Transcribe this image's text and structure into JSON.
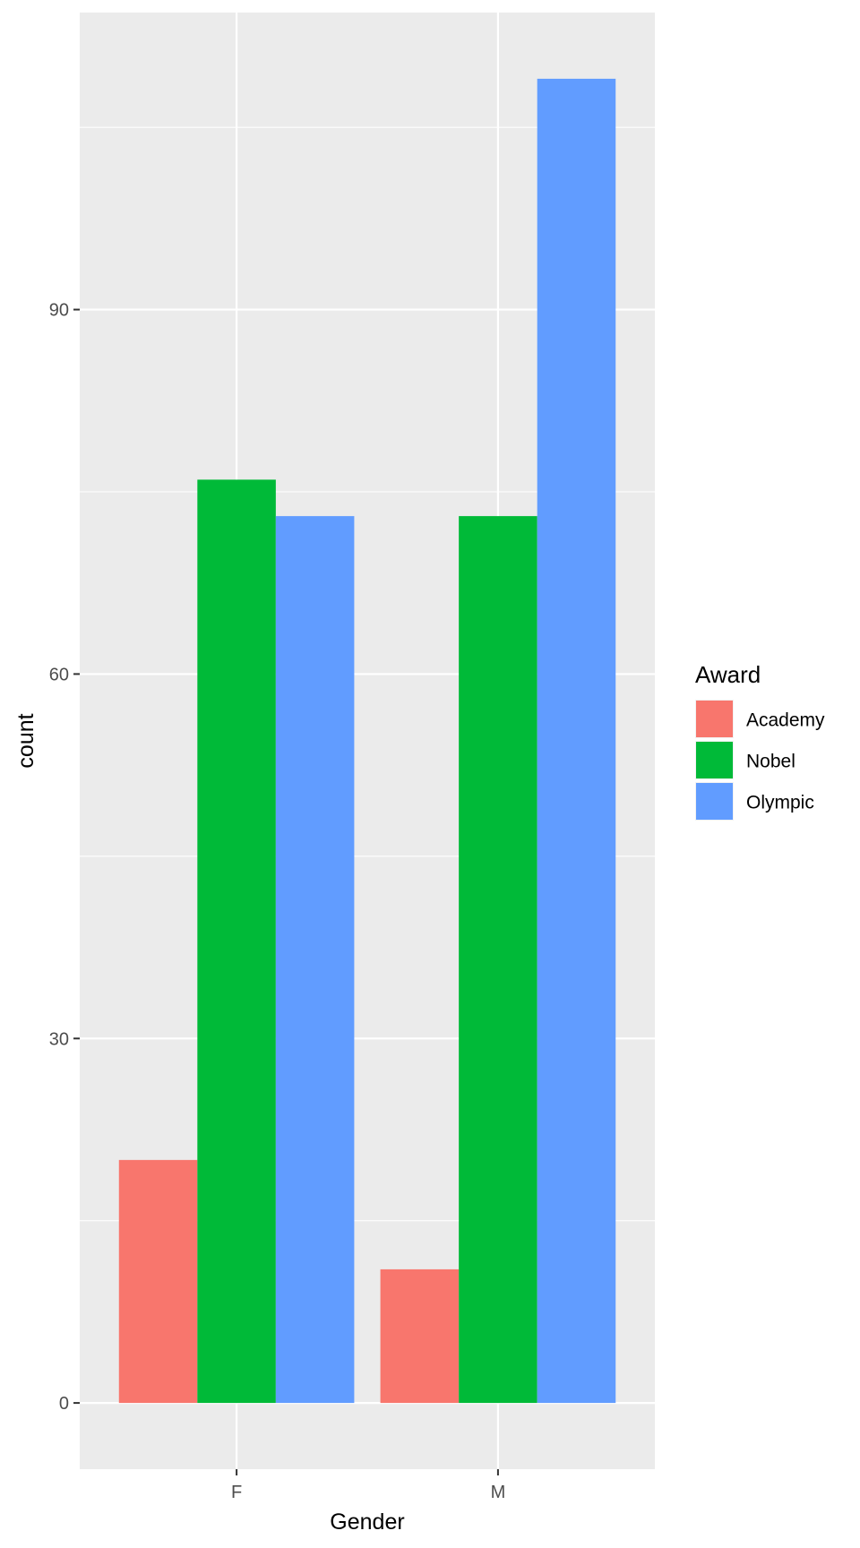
{
  "chart_data": {
    "type": "bar",
    "categories": [
      "F",
      "M"
    ],
    "series": [
      {
        "name": "Academy",
        "values": [
          20,
          11
        ],
        "color": "#F8766D"
      },
      {
        "name": "Nobel",
        "values": [
          76,
          73
        ],
        "color": "#00BA38"
      },
      {
        "name": "Olympic",
        "values": [
          73,
          109
        ],
        "color": "#619CFF"
      }
    ],
    "xlabel": "Gender",
    "ylabel": "count",
    "ylim": [
      -5.45,
      114.45
    ],
    "yticks": [
      0,
      30,
      60,
      90
    ],
    "grid": true,
    "background": "#EBEBEB",
    "legend": {
      "title": "Award",
      "position": "right"
    }
  }
}
